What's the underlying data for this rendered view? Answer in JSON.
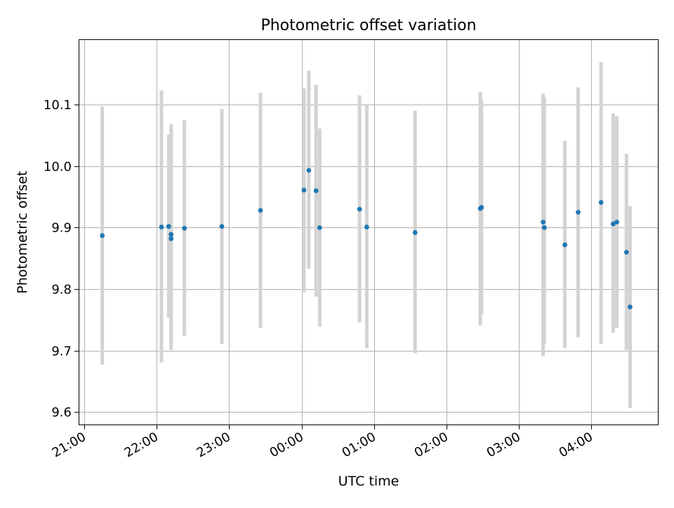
{
  "chart_data": {
    "type": "scatter",
    "title": "Photometric offset variation",
    "xlabel": "UTC time",
    "ylabel": "Photometric offset",
    "grid": true,
    "legend": "none",
    "colors": {
      "point": "#1f77b4",
      "errorbar": "#d3d3d3",
      "grid": "#b0b0b0"
    },
    "x_axis": {
      "type": "time",
      "range": [
        "20:56",
        "04:55"
      ],
      "ticks": [
        "21:00",
        "22:00",
        "23:00",
        "00:00",
        "01:00",
        "02:00",
        "03:00",
        "04:00"
      ]
    },
    "y_axis": {
      "range": [
        9.58,
        10.205
      ],
      "ticks": [
        "9.6",
        "9.7",
        "9.8",
        "9.9",
        "10.0",
        "10.1"
      ]
    },
    "points": [
      {
        "t": "21:15",
        "y": 9.887,
        "ylo": 9.677,
        "yhi": 10.097
      },
      {
        "t": "22:04",
        "y": 9.901,
        "ylo": 9.681,
        "yhi": 10.123
      },
      {
        "t": "22:10",
        "y": 9.902,
        "ylo": 9.754,
        "yhi": 10.051
      },
      {
        "t": "22:12",
        "y": 9.882,
        "ylo": 9.701,
        "yhi": 10.061
      },
      {
        "t": "22:12",
        "y": 9.889,
        "ylo": 9.711,
        "yhi": 10.068
      },
      {
        "t": "22:23",
        "y": 9.899,
        "ylo": 9.724,
        "yhi": 10.075
      },
      {
        "t": "22:54",
        "y": 9.902,
        "ylo": 9.711,
        "yhi": 10.093
      },
      {
        "t": "23:26",
        "y": 9.928,
        "ylo": 9.737,
        "yhi": 10.119
      },
      {
        "t": "00:02",
        "y": 9.961,
        "ylo": 9.795,
        "yhi": 10.126
      },
      {
        "t": "00:06",
        "y": 9.993,
        "ylo": 9.833,
        "yhi": 10.155
      },
      {
        "t": "00:12",
        "y": 9.96,
        "ylo": 9.788,
        "yhi": 10.132
      },
      {
        "t": "00:15",
        "y": 9.9,
        "ylo": 9.739,
        "yhi": 10.061
      },
      {
        "t": "00:48",
        "y": 9.93,
        "ylo": 9.746,
        "yhi": 10.115
      },
      {
        "t": "00:54",
        "y": 9.901,
        "ylo": 9.704,
        "yhi": 10.101
      },
      {
        "t": "01:34",
        "y": 9.892,
        "ylo": 9.696,
        "yhi": 10.09
      },
      {
        "t": "02:28",
        "y": 9.931,
        "ylo": 9.741,
        "yhi": 10.121
      },
      {
        "t": "02:29",
        "y": 9.933,
        "ylo": 9.759,
        "yhi": 10.107
      },
      {
        "t": "03:20",
        "y": 9.909,
        "ylo": 9.691,
        "yhi": 10.118
      },
      {
        "t": "03:21",
        "y": 9.9,
        "ylo": 9.711,
        "yhi": 10.111
      },
      {
        "t": "03:38",
        "y": 9.872,
        "ylo": 9.704,
        "yhi": 10.041
      },
      {
        "t": "03:49",
        "y": 9.925,
        "ylo": 9.722,
        "yhi": 10.128
      },
      {
        "t": "04:08",
        "y": 9.941,
        "ylo": 9.711,
        "yhi": 10.169
      },
      {
        "t": "04:18",
        "y": 9.906,
        "ylo": 9.729,
        "yhi": 10.086
      },
      {
        "t": "04:21",
        "y": 9.909,
        "ylo": 9.737,
        "yhi": 10.081
      },
      {
        "t": "04:29",
        "y": 9.86,
        "ylo": 9.701,
        "yhi": 10.02
      },
      {
        "t": "04:32",
        "y": 9.771,
        "ylo": 9.607,
        "yhi": 9.935
      }
    ]
  }
}
